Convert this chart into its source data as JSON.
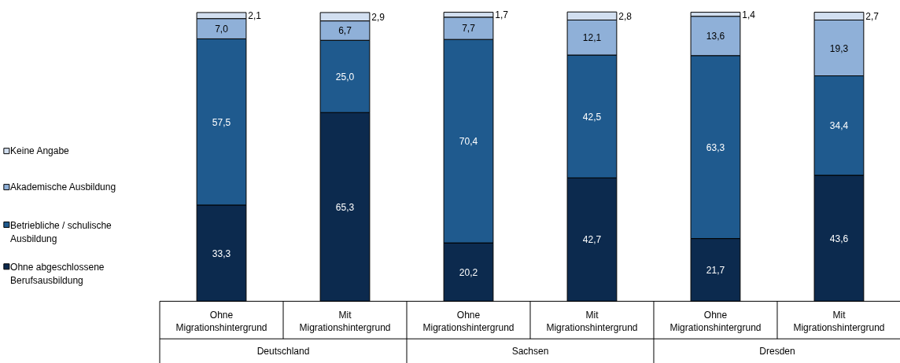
{
  "chart_data": {
    "type": "bar",
    "stacked": true,
    "legend": "left",
    "categories": [
      "Ohne Migrationshintergrund",
      "Mit Migrationshintergrund",
      "Ohne Migrationshintergrund",
      "Mit Migrationshintergrund",
      "Ohne Migrationshintergrund",
      "Mit Migrationshintergrund"
    ],
    "annotations": [
      "Deutschland",
      "Sachsen",
      "Dresden"
    ],
    "series": [
      {
        "name": "Ohne abgeschlossene Berufsausbildung",
        "color": "#0c2a4e",
        "values": [
          33.3,
          65.3,
          20.2,
          42.7,
          21.7,
          43.6
        ],
        "value_labels": [
          "33,3",
          "65,3",
          "20,2",
          "42,7",
          "21,7",
          "43,6"
        ]
      },
      {
        "name": "Betriebliche / schulische Ausbildung",
        "color": "#1f5a8e",
        "values": [
          57.5,
          25.0,
          70.4,
          42.5,
          63.3,
          34.4
        ],
        "value_labels": [
          "57,5",
          "25,0",
          "70,4",
          "42,5",
          "63,3",
          "34,4"
        ]
      },
      {
        "name": "Akademische Ausbildung",
        "color": "#8fb0d8",
        "values": [
          7.0,
          6.7,
          7.7,
          12.1,
          13.6,
          19.3
        ],
        "value_labels": [
          "7,0",
          "6,7",
          "7,7",
          "12,1",
          "13,6",
          "19,3"
        ]
      },
      {
        "name": "Keine Angabe",
        "color": "#d2dff0",
        "values": [
          2.1,
          2.9,
          1.7,
          2.8,
          1.4,
          2.7
        ],
        "value_labels": [
          "2,1",
          "2,9",
          "1,7",
          "2,8",
          "1,4",
          "2,7"
        ]
      }
    ]
  }
}
